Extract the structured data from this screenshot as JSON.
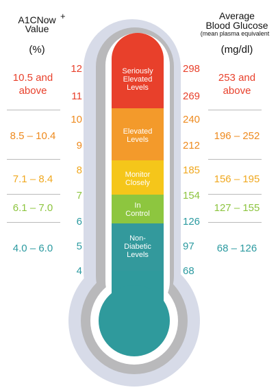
{
  "header": {
    "left_line1": "A1CNow",
    "left_plus": "+",
    "left_line2": "Value",
    "left_unit": "(%)",
    "right_line1": "Average",
    "right_line2": "Blood Glucose",
    "right_line3": "(mean plasma equivalent",
    "right_unit": "(mg/dl)"
  },
  "zones": [
    {
      "key": "seriously",
      "label_lines": [
        "Seriously",
        "Elevated",
        "Levels"
      ],
      "color": "#e8402b",
      "a1c_range": [
        "10.5 and",
        "above"
      ],
      "glucose_range": [
        "253 and",
        "above"
      ],
      "text_color": "#e8402b"
    },
    {
      "key": "elevated",
      "label_lines": [
        "Elevated",
        "Levels"
      ],
      "color": "#f39a2b",
      "a1c_range": [
        "8.5 – 10.4"
      ],
      "glucose_range": [
        "196 – 252"
      ],
      "text_color": "#ee8a1e"
    },
    {
      "key": "monitor",
      "label_lines": [
        "Monitor",
        "Closely"
      ],
      "color": "#f5c61a",
      "a1c_range": [
        "7.1 – 8.4"
      ],
      "glucose_range": [
        "156 – 195"
      ],
      "text_color": "#f0a81f"
    },
    {
      "key": "control",
      "label_lines": [
        "In",
        "Control"
      ],
      "color": "#8dc63f",
      "a1c_range": [
        "6.1 – 7.0"
      ],
      "glucose_range": [
        "127 – 155"
      ],
      "text_color": "#8cc43e"
    },
    {
      "key": "nondiabetic",
      "label_lines": [
        "Non-",
        "Diabetic",
        "Levels"
      ],
      "color": "#33999c",
      "a1c_range": [
        "4.0 – 6.0"
      ],
      "glucose_range": [
        "68 – 126"
      ],
      "text_color": "#2b9aa0"
    }
  ],
  "ticks": [
    {
      "a1c": "12",
      "glucose": "298",
      "color": "#e8402b"
    },
    {
      "a1c": "11",
      "glucose": "269",
      "color": "#e8402b"
    },
    {
      "a1c": "10",
      "glucose": "240",
      "color": "#ee8a1e"
    },
    {
      "a1c": "9",
      "glucose": "212",
      "color": "#ee8a1e"
    },
    {
      "a1c": "8",
      "glucose": "185",
      "color": "#f0a81f"
    },
    {
      "a1c": "7",
      "glucose": "154",
      "color": "#8cc43e"
    },
    {
      "a1c": "6",
      "glucose": "126",
      "color": "#2b9aa0"
    },
    {
      "a1c": "5",
      "glucose": "97",
      "color": "#2b9aa0"
    },
    {
      "a1c": "4",
      "glucose": "68",
      "color": "#2b9aa0"
    }
  ],
  "colors": {
    "outer_shell": "#d7dbe8",
    "inner_shell": "#b9b9bb",
    "tube_bg": "#ffffff",
    "bulb": "#2f9a9c",
    "separator": "#b9b9b9"
  }
}
